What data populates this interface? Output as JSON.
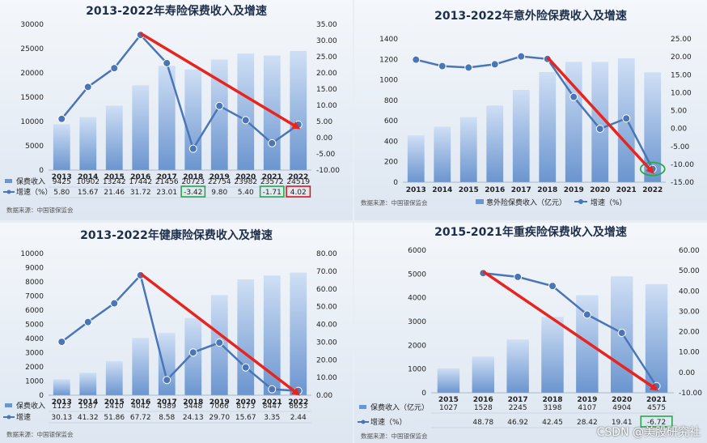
{
  "watermark": "CSDN @美股研究社",
  "colors": {
    "bar_top": "#cfdff5",
    "bar_bottom": "#6b95cf",
    "line": "#4a76b8",
    "arrow": "#e8241e",
    "green_box": "#2aa84a",
    "red_box": "#d61c1c",
    "axis_text": "#222222"
  },
  "chart_data": [
    {
      "type": "bar",
      "title": "2013-2022年寿险保费收入及增速",
      "source": "数据来源：中国银保监会",
      "categories": [
        "2013",
        "2014",
        "2015",
        "2016",
        "2017",
        "2018",
        "2019",
        "2020",
        "2021",
        "2022"
      ],
      "series": [
        {
          "name": "保费收入",
          "type": "bar",
          "axis": "left",
          "values": [
            9425,
            10902,
            13242,
            17442,
            21456,
            20723,
            22754,
            23982,
            23572,
            24519
          ]
        },
        {
          "name": "增速（%）",
          "type": "line",
          "axis": "right",
          "values": [
            5.8,
            15.67,
            21.46,
            31.72,
            23.01,
            -3.42,
            9.8,
            5.4,
            -1.71,
            4.02
          ]
        }
      ],
      "table_rows": [
        {
          "label": "保费收入",
          "cells": [
            "9425",
            "10902",
            "13242",
            "17442",
            "21456",
            "20723",
            "22754",
            "23982",
            "23572",
            "24519"
          ]
        },
        {
          "label": "增速（%）",
          "cells": [
            "5.80",
            "15.67",
            "21.46",
            "31.72",
            "23.01",
            "-3.42",
            "9.80",
            "5.40",
            "-1.71",
            "4.02"
          ]
        }
      ],
      "y_left": {
        "min": 0,
        "max": 30000,
        "ticks": [
          "0",
          "5000",
          "10000",
          "15000",
          "20000",
          "25000",
          "30000"
        ]
      },
      "y_right": {
        "min": -10,
        "max": 35,
        "ticks": [
          "-10.00",
          "-5.00",
          "0.00",
          "5.00",
          "10.00",
          "15.00",
          "20.00",
          "25.00",
          "30.00",
          "35.00"
        ]
      },
      "arrow": {
        "from_category": "2016",
        "to_category": "2022"
      },
      "highlighted_cells": [
        {
          "row": 1,
          "category": "2018",
          "color": "green"
        },
        {
          "row": 1,
          "category": "2021",
          "color": "green"
        },
        {
          "row": 1,
          "category": "2022",
          "color": "red"
        }
      ]
    },
    {
      "type": "bar",
      "title": "2013-2022年意外险保费收入及增速",
      "source": "数据来源：中国银保监会",
      "categories": [
        "2013",
        "2014",
        "2015",
        "2016",
        "2017",
        "2018",
        "2019",
        "2020",
        "2021",
        "2022"
      ],
      "series": [
        {
          "name": "意外险保费收入（亿元）",
          "type": "bar",
          "axis": "left",
          "values": [
            458,
            542,
            636,
            750,
            902,
            1076,
            1175,
            1174,
            1210,
            1073
          ]
        },
        {
          "name": "增速（%）",
          "type": "line",
          "axis": "right",
          "values": [
            19.2,
            17.4,
            17.0,
            17.9,
            20.1,
            19.4,
            8.8,
            -0.1,
            2.8,
            -11.3
          ]
        }
      ],
      "legend": [
        "意外险保费收入（亿元）",
        "增速（%）"
      ],
      "y_left": {
        "min": 0,
        "max": 1400,
        "ticks": [
          "0",
          "200",
          "400",
          "600",
          "800",
          "1000",
          "1200",
          "1400"
        ]
      },
      "y_right": {
        "min": -15,
        "max": 25,
        "ticks": [
          "-15.00",
          "-10.00",
          "-5.00",
          "0.00",
          "5.00",
          "10.00",
          "15.00",
          "20.00",
          "25.00"
        ]
      },
      "arrow": {
        "from_category": "2018",
        "to_category": "2022"
      },
      "highlighted_point": {
        "category": "2022",
        "color": "green"
      }
    },
    {
      "type": "bar",
      "title": "2013-2022年健康险保费收入及增速",
      "source": "数据来源：中国银保监会",
      "categories": [
        "2013",
        "2014",
        "2015",
        "2016",
        "2017",
        "2018",
        "2019",
        "2020",
        "2021",
        "2022"
      ],
      "series": [
        {
          "name": "保费收入",
          "type": "bar",
          "axis": "left",
          "values": [
            1123,
            1587,
            2410,
            4042,
            4389,
            5448,
            7066,
            8173,
            8447,
            8653
          ]
        },
        {
          "name": "增速",
          "type": "line",
          "axis": "right",
          "values": [
            30.13,
            41.32,
            51.86,
            67.72,
            8.58,
            24.13,
            29.7,
            15.67,
            3.35,
            2.44
          ]
        }
      ],
      "table_rows": [
        {
          "label": "保费收入",
          "cells": [
            "1123",
            "1587",
            "2410",
            "4042",
            "4389",
            "5448",
            "7066",
            "8173",
            "8447",
            "8653"
          ]
        },
        {
          "label": "增速",
          "cells": [
            "30.13",
            "41.32",
            "51.86",
            "67.72",
            "8.58",
            "24.13",
            "29.70",
            "15.67",
            "3.35",
            "2.44"
          ]
        }
      ],
      "y_left": {
        "min": 0,
        "max": 10000,
        "ticks": [
          "0",
          "1000",
          "2000",
          "3000",
          "4000",
          "5000",
          "6000",
          "7000",
          "8000",
          "9000",
          "10000"
        ]
      },
      "y_right": {
        "min": 0,
        "max": 80,
        "ticks": [
          "0.00",
          "10.00",
          "20.00",
          "30.00",
          "40.00",
          "50.00",
          "60.00",
          "70.00",
          "80.00"
        ]
      },
      "arrow": {
        "from_category": "2016",
        "to_category": "2022"
      }
    },
    {
      "type": "bar",
      "title": "2015-2021年重疾险保费收入及增速",
      "source": "数据来源：中国银保监会",
      "categories": [
        "2015",
        "2016",
        "2017",
        "2018",
        "2019",
        "2020",
        "2021"
      ],
      "series": [
        {
          "name": "保费收入（亿元）",
          "type": "bar",
          "axis": "left",
          "values": [
            1027,
            1528,
            2245,
            3198,
            4107,
            4904,
            4575
          ]
        },
        {
          "name": "增速（%）",
          "type": "line",
          "axis": "right",
          "values": [
            null,
            48.78,
            46.92,
            42.45,
            28.42,
            19.41,
            -6.72
          ]
        }
      ],
      "table_rows": [
        {
          "label": "保费收入（亿元）",
          "cells": [
            "1027",
            "1528",
            "2245",
            "3198",
            "4107",
            "4904",
            "4575"
          ]
        },
        {
          "label": "增速（%）",
          "cells": [
            "",
            "48.78",
            "46.92",
            "42.45",
            "28.42",
            "19.41",
            "-6.72"
          ]
        }
      ],
      "y_left": {
        "min": 0,
        "max": 6000,
        "ticks": [
          "0",
          "1000",
          "2000",
          "3000",
          "4000",
          "5000",
          "6000"
        ]
      },
      "y_right": {
        "min": -10,
        "max": 60,
        "ticks": [
          "-10.00",
          "0.00",
          "10.00",
          "20.00",
          "30.00",
          "40.00",
          "50.00",
          "60.00"
        ]
      },
      "arrow": {
        "from_category": "2016",
        "to_category": "2021"
      },
      "highlighted_cells": [
        {
          "row": 1,
          "category": "2021",
          "color": "green"
        }
      ]
    }
  ]
}
